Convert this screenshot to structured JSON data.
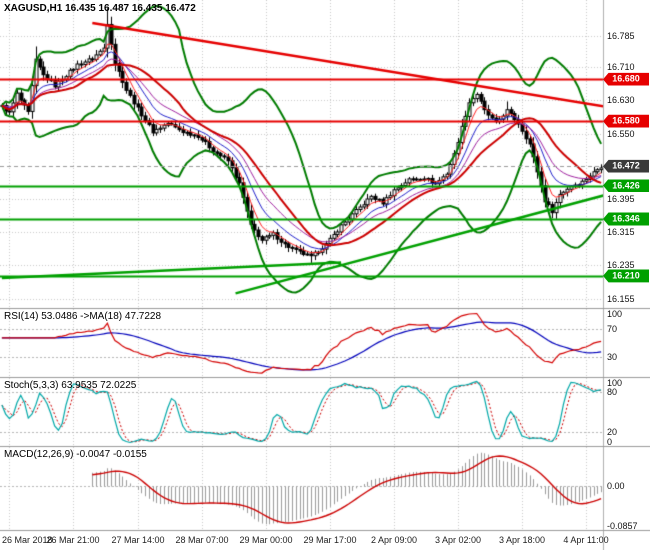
{
  "header": {
    "symbol_line": "XAGUSD,H1 16.435 16.487 16.435 16.472"
  },
  "colors": {
    "background": "#ffffff",
    "grid": "#c9c9c9",
    "separator": "#9a9a9a",
    "candle": "#000000",
    "bull_fill": "#ffffff",
    "bear_fill": "#000000",
    "bollinger": "#007c00",
    "bollinger_mid": "#cc0000",
    "resistance": "#e60000",
    "support": "#00a000",
    "current_line": "#9a9a9a",
    "tag_current": "#3a3a3a",
    "rsi_line": "#d40000",
    "rsi_ma": "#0000bb",
    "stoch_k": "#00a8a8",
    "stoch_d": "#cc0000",
    "macd_hist": "#9b9b9b",
    "macd_signal": "#cc0000",
    "axis_text": "#111111"
  },
  "chart_data": {
    "type": "candlestick",
    "symbol": "XAGUSD",
    "timeframe": "H1",
    "ohlc": {
      "open": "16.435",
      "high": "16.487",
      "low": "16.435",
      "close": "16.472"
    },
    "bars": 160,
    "price_axis": {
      "min": 16.133,
      "max": 16.87,
      "ticks": [
        "16.785",
        "16.710",
        "16.630",
        "16.550",
        "16.395",
        "16.315",
        "16.235",
        "16.155"
      ]
    },
    "levels": [
      {
        "label": "16.680",
        "value": 16.68,
        "style": "resistance"
      },
      {
        "label": "16.580",
        "value": 16.58,
        "style": "resistance"
      },
      {
        "label": "16.472",
        "value": 16.472,
        "style": "current"
      },
      {
        "label": "16.426",
        "value": 16.426,
        "style": "support"
      },
      {
        "label": "16.346",
        "value": 16.346,
        "style": "support"
      },
      {
        "label": "16.210",
        "value": 16.21,
        "style": "support"
      }
    ],
    "price_path_anchors": [
      [
        0,
        16.615
      ],
      [
        2,
        16.6
      ],
      [
        4,
        16.645
      ],
      [
        7,
        16.6
      ],
      [
        9,
        16.725
      ],
      [
        11,
        16.69
      ],
      [
        14,
        16.665
      ],
      [
        17,
        16.69
      ],
      [
        20,
        16.715
      ],
      [
        24,
        16.73
      ],
      [
        27,
        16.755
      ],
      [
        28,
        16.815
      ],
      [
        30,
        16.72
      ],
      [
        33,
        16.655
      ],
      [
        36,
        16.61
      ],
      [
        40,
        16.555
      ],
      [
        44,
        16.575
      ],
      [
        48,
        16.555
      ],
      [
        52,
        16.545
      ],
      [
        56,
        16.51
      ],
      [
        60,
        16.485
      ],
      [
        63,
        16.43
      ],
      [
        66,
        16.33
      ],
      [
        69,
        16.295
      ],
      [
        72,
        16.31
      ],
      [
        75,
        16.285
      ],
      [
        78,
        16.27
      ],
      [
        82,
        16.255
      ],
      [
        86,
        16.285
      ],
      [
        90,
        16.33
      ],
      [
        94,
        16.365
      ],
      [
        98,
        16.4
      ],
      [
        101,
        16.385
      ],
      [
        104,
        16.415
      ],
      [
        108,
        16.44
      ],
      [
        112,
        16.445
      ],
      [
        115,
        16.43
      ],
      [
        118,
        16.455
      ],
      [
        120,
        16.5
      ],
      [
        122,
        16.565
      ],
      [
        124,
        16.625
      ],
      [
        126,
        16.645
      ],
      [
        128,
        16.605
      ],
      [
        131,
        16.575
      ],
      [
        134,
        16.605
      ],
      [
        137,
        16.575
      ],
      [
        140,
        16.525
      ],
      [
        142,
        16.46
      ],
      [
        144,
        16.39
      ],
      [
        146,
        16.365
      ],
      [
        148,
        16.405
      ],
      [
        151,
        16.425
      ],
      [
        154,
        16.435
      ],
      [
        156,
        16.45
      ],
      [
        159,
        16.472
      ]
    ],
    "wick_boosts": [
      [
        9,
        0.012,
        0
      ],
      [
        28,
        0.02,
        0
      ],
      [
        82,
        0,
        0.012
      ],
      [
        134,
        0.014,
        0
      ]
    ],
    "trendlines": [
      {
        "from": [
          24,
          16.815
        ],
        "to": [
          162,
          16.612
        ],
        "color": "#e60000",
        "width": 2.5
      },
      {
        "from": [
          0,
          16.205
        ],
        "to": [
          90,
          16.242
        ],
        "color": "#00a000",
        "width": 2.5
      },
      {
        "from": [
          62,
          16.168
        ],
        "to": [
          162,
          16.408
        ],
        "color": "#00a000",
        "width": 2.5
      }
    ],
    "time_ticks": [
      {
        "index": 2,
        "label": "26 Mar 2018"
      },
      {
        "index": 19,
        "label": "26 Mar 21:00"
      },
      {
        "index": 36,
        "label": "27 Mar 14:00"
      },
      {
        "index": 53,
        "label": "28 Mar 07:00"
      },
      {
        "index": 70,
        "label": "29 Mar 00:00"
      },
      {
        "index": 87,
        "label": "29 Mar 17:00"
      },
      {
        "index": 104,
        "label": "2 Apr 09:00"
      },
      {
        "index": 121,
        "label": "3 Apr 02:00"
      },
      {
        "index": 138,
        "label": "3 Apr 18:00"
      },
      {
        "index": 155,
        "label": "4 Apr 11:00"
      }
    ],
    "bollinger": {
      "period": 20,
      "deviation": 2.4
    },
    "moving_averages": [
      {
        "period": 5,
        "color": "#ff2020"
      },
      {
        "period": 10,
        "color": "#2020cc"
      },
      {
        "period": 16,
        "color": "#a020a0"
      }
    ],
    "indicators": {
      "rsi": {
        "label": "RSI(14) 53.0486 ->MA(18) 47.7228",
        "period": 14,
        "ma_period": 18,
        "value": 53.0486,
        "ma_value": 47.7228,
        "range": [
          0,
          100
        ],
        "ticks": [
          "100",
          "70",
          "30"
        ],
        "levels": [
          70,
          30
        ]
      },
      "stoch": {
        "label": "Stoch(5,3,3) 63.9535 72.0225",
        "k": 5,
        "d": 3,
        "slowing": 3,
        "value_k": 63.9535,
        "value_d": 72.0225,
        "range": [
          0,
          100
        ],
        "ticks": [
          "100",
          "80",
          "20",
          "0"
        ],
        "levels": [
          80,
          20
        ]
      },
      "macd": {
        "label": "MACD(12,26,9) -0.0047 -0.0155",
        "fast": 12,
        "slow": 26,
        "signal_period": 9,
        "value": -0.0047,
        "signal": -0.0155,
        "ticks": [
          "0.00",
          "-0.0857"
        ]
      }
    }
  }
}
